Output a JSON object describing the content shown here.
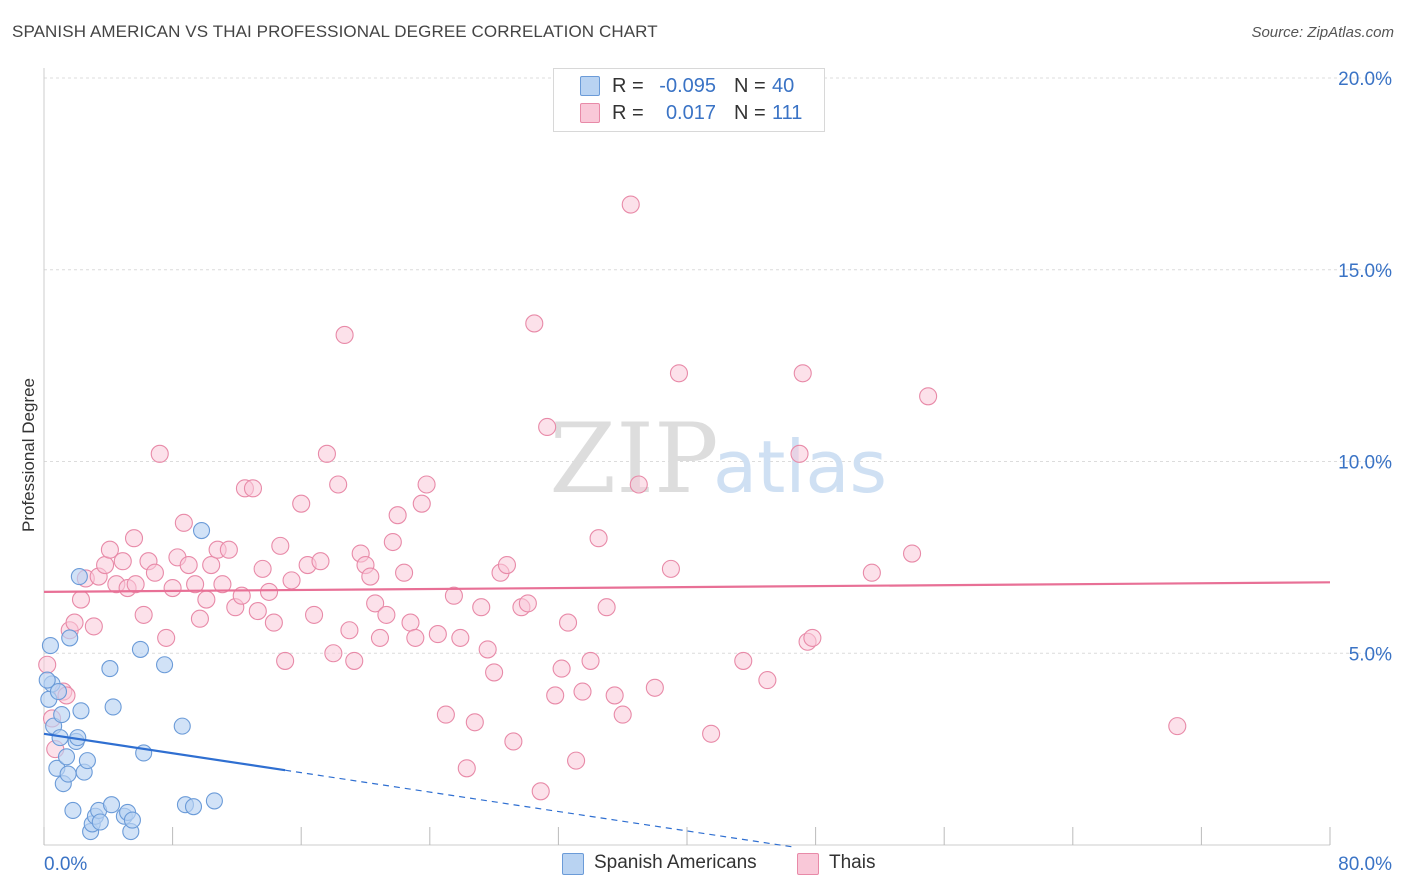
{
  "title": "SPANISH AMERICAN VS THAI PROFESSIONAL DEGREE CORRELATION CHART",
  "source": "Source: ZipAtlas.com",
  "watermark": {
    "zip": "ZIP",
    "atlas": "atlas"
  },
  "legend": {
    "rows": [
      {
        "r_label": "R =",
        "r_value": "-0.095",
        "n_label": "N =",
        "n_value": "40",
        "fill": "#b9d3f2",
        "stroke": "#6b9bd8"
      },
      {
        "r_label": "R =",
        "r_value": "0.017",
        "n_label": "N =",
        "n_value": "111",
        "fill": "#f9c8d8",
        "stroke": "#e88aa8"
      }
    ]
  },
  "bottom_legend": [
    {
      "label": "Spanish Americans",
      "fill": "#b9d3f2",
      "stroke": "#6b9bd8"
    },
    {
      "label": "Thais",
      "fill": "#f9c8d8",
      "stroke": "#e88aa8"
    }
  ],
  "chart_data": {
    "type": "scatter",
    "title": "SPANISH AMERICAN VS THAI PROFESSIONAL DEGREE CORRELATION CHART",
    "xlabel": "",
    "ylabel": "Professional Degree",
    "xlim": [
      0,
      80
    ],
    "ylim": [
      0,
      20
    ],
    "x_tick_labels": [
      "0.0%",
      "80.0%"
    ],
    "y_ticks": [
      5,
      10,
      15,
      20
    ],
    "y_tick_labels": [
      "5.0%",
      "10.0%",
      "15.0%",
      "20.0%"
    ],
    "grid": true,
    "legend_position": "top-center",
    "series": [
      {
        "name": "Spanish Americans",
        "color": "#6b9bd8",
        "fill": "#b9d3f2",
        "trend": {
          "x": [
            0,
            15
          ],
          "y": [
            2.9,
            1.95
          ],
          "dash_to_x": 46.5
        },
        "points": [
          [
            0.3,
            3.8
          ],
          [
            0.4,
            5.2
          ],
          [
            0.5,
            4.2
          ],
          [
            0.6,
            3.1
          ],
          [
            0.8,
            2.0
          ],
          [
            0.9,
            4.0
          ],
          [
            1.0,
            2.8
          ],
          [
            1.2,
            1.6
          ],
          [
            1.4,
            2.3
          ],
          [
            1.5,
            1.85
          ],
          [
            1.6,
            5.4
          ],
          [
            1.8,
            0.9
          ],
          [
            2.0,
            2.7
          ],
          [
            2.1,
            2.8
          ],
          [
            2.2,
            7.0
          ],
          [
            2.3,
            3.5
          ],
          [
            2.5,
            1.9
          ],
          [
            2.7,
            2.2
          ],
          [
            2.9,
            0.35
          ],
          [
            3.0,
            0.55
          ],
          [
            3.2,
            0.75
          ],
          [
            3.4,
            0.9
          ],
          [
            3.5,
            0.6
          ],
          [
            4.1,
            4.6
          ],
          [
            4.2,
            1.05
          ],
          [
            4.3,
            3.6
          ],
          [
            5.0,
            0.75
          ],
          [
            5.2,
            0.85
          ],
          [
            5.4,
            0.35
          ],
          [
            5.5,
            0.65
          ],
          [
            6.2,
            2.4
          ],
          [
            6.0,
            5.1
          ],
          [
            7.5,
            4.7
          ],
          [
            8.6,
            3.1
          ],
          [
            8.8,
            1.05
          ],
          [
            9.3,
            1.0
          ],
          [
            9.8,
            8.2
          ],
          [
            10.6,
            1.15
          ],
          [
            0.2,
            4.3
          ],
          [
            1.1,
            3.4
          ]
        ]
      },
      {
        "name": "Thais",
        "color": "#e87096",
        "fill": "#f9c8d8",
        "trend": {
          "x": [
            0,
            80
          ],
          "y": [
            6.6,
            6.85
          ]
        },
        "points": [
          [
            0.2,
            4.7
          ],
          [
            0.5,
            3.3
          ],
          [
            1.2,
            4.0
          ],
          [
            1.6,
            5.6
          ],
          [
            1.9,
            5.8
          ],
          [
            2.3,
            6.4
          ],
          [
            2.6,
            6.95
          ],
          [
            3.1,
            5.7
          ],
          [
            3.4,
            7.0
          ],
          [
            3.8,
            7.3
          ],
          [
            4.1,
            7.7
          ],
          [
            4.5,
            6.8
          ],
          [
            4.9,
            7.4
          ],
          [
            5.2,
            6.7
          ],
          [
            5.6,
            8.0
          ],
          [
            5.7,
            6.8
          ],
          [
            6.2,
            6.0
          ],
          [
            6.5,
            7.4
          ],
          [
            6.9,
            7.1
          ],
          [
            7.2,
            10.2
          ],
          [
            7.6,
            5.4
          ],
          [
            8.0,
            6.7
          ],
          [
            8.3,
            7.5
          ],
          [
            8.7,
            8.4
          ],
          [
            9.0,
            7.3
          ],
          [
            9.4,
            6.8
          ],
          [
            9.7,
            5.9
          ],
          [
            10.1,
            6.4
          ],
          [
            10.4,
            7.3
          ],
          [
            10.8,
            7.7
          ],
          [
            11.1,
            6.8
          ],
          [
            11.5,
            7.7
          ],
          [
            11.9,
            6.2
          ],
          [
            12.3,
            6.5
          ],
          [
            12.5,
            9.3
          ],
          [
            13.0,
            9.3
          ],
          [
            13.3,
            6.1
          ],
          [
            13.6,
            7.2
          ],
          [
            14.0,
            6.6
          ],
          [
            14.3,
            5.8
          ],
          [
            14.7,
            7.8
          ],
          [
            15.0,
            4.8
          ],
          [
            15.4,
            6.9
          ],
          [
            16.0,
            8.9
          ],
          [
            16.4,
            7.3
          ],
          [
            16.8,
            6.0
          ],
          [
            17.2,
            7.4
          ],
          [
            17.6,
            10.2
          ],
          [
            18.0,
            5.0
          ],
          [
            18.3,
            9.4
          ],
          [
            18.7,
            13.3
          ],
          [
            19.0,
            5.6
          ],
          [
            19.3,
            4.8
          ],
          [
            19.7,
            7.6
          ],
          [
            20.0,
            7.3
          ],
          [
            20.3,
            7.0
          ],
          [
            20.6,
            6.3
          ],
          [
            20.9,
            5.4
          ],
          [
            21.3,
            6.0
          ],
          [
            21.7,
            7.9
          ],
          [
            22.0,
            8.6
          ],
          [
            22.4,
            7.1
          ],
          [
            22.8,
            5.8
          ],
          [
            23.1,
            5.4
          ],
          [
            23.5,
            8.9
          ],
          [
            23.8,
            9.4
          ],
          [
            24.5,
            5.5
          ],
          [
            25.0,
            3.4
          ],
          [
            25.5,
            6.5
          ],
          [
            25.9,
            5.4
          ],
          [
            26.3,
            2.0
          ],
          [
            26.8,
            3.2
          ],
          [
            27.2,
            6.2
          ],
          [
            27.6,
            5.1
          ],
          [
            28.0,
            4.5
          ],
          [
            28.4,
            7.1
          ],
          [
            28.8,
            7.3
          ],
          [
            29.2,
            2.7
          ],
          [
            29.7,
            6.2
          ],
          [
            30.1,
            6.3
          ],
          [
            30.5,
            13.6
          ],
          [
            30.9,
            1.4
          ],
          [
            31.3,
            10.9
          ],
          [
            31.8,
            3.9
          ],
          [
            32.2,
            4.6
          ],
          [
            32.6,
            5.8
          ],
          [
            33.1,
            2.2
          ],
          [
            33.5,
            4.0
          ],
          [
            34.0,
            4.8
          ],
          [
            34.5,
            8.0
          ],
          [
            35.0,
            6.2
          ],
          [
            35.5,
            3.9
          ],
          [
            36.0,
            3.4
          ],
          [
            36.5,
            16.7
          ],
          [
            37.0,
            9.4
          ],
          [
            38.0,
            4.1
          ],
          [
            39.0,
            7.2
          ],
          [
            39.5,
            12.3
          ],
          [
            41.5,
            2.9
          ],
          [
            43.5,
            4.8
          ],
          [
            45.0,
            4.3
          ],
          [
            47.5,
            5.3
          ],
          [
            47.8,
            5.4
          ],
          [
            47.0,
            10.2
          ],
          [
            47.2,
            12.3
          ],
          [
            51.5,
            7.1
          ],
          [
            54.0,
            7.6
          ],
          [
            55.0,
            11.7
          ],
          [
            70.5,
            3.1
          ],
          [
            0.7,
            2.5
          ],
          [
            1.4,
            3.9
          ]
        ]
      }
    ]
  }
}
